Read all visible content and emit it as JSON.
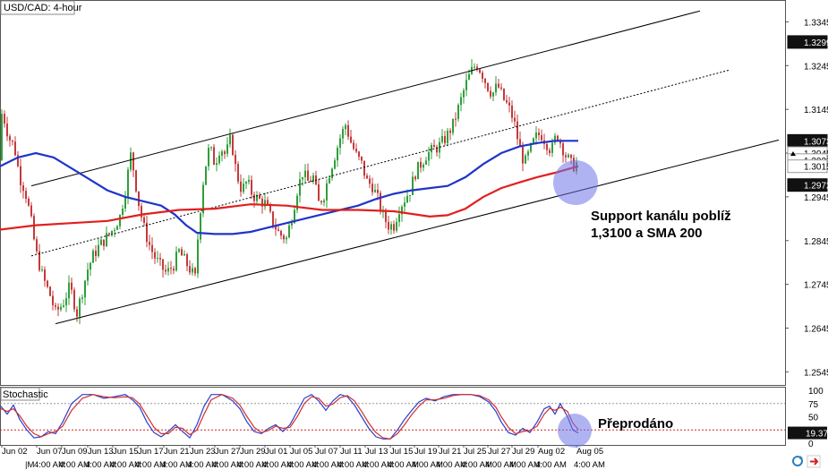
{
  "header": {
    "symbol_label": "USD/CAD: 4-hour"
  },
  "indicator": {
    "label": "Stochastic",
    "current_value": "19.37",
    "levels": [
      "100",
      "75",
      "50",
      "25",
      "0"
    ]
  },
  "annotations": {
    "support_line1": "Support kanálu poblíž",
    "support_line2": "1,3100 a SMA 200",
    "oversold": "Přeprodáno"
  },
  "price_tags": [
    {
      "value": "1.3299",
      "style": "dark"
    },
    {
      "value": "1.3073",
      "style": "dark"
    },
    {
      "value": "1.3045",
      "style": "light"
    },
    {
      "value": "1.3029",
      "style": "light"
    },
    {
      "value": "1.3015",
      "style": "light"
    },
    {
      "value": "1.2972",
      "style": "dark"
    }
  ],
  "colors": {
    "sma_fast": "#1f35c9",
    "sma_slow": "#e0201e",
    "bull": "#2f9e3a",
    "bear": "#c43a3a",
    "stoch_k": "#2a3fcf",
    "stoch_d": "#d23030",
    "highlight": "#6f74e8"
  },
  "chart_data": {
    "type": "candlestick",
    "title": "USD/CAD: 4-hour",
    "y_ticks": [
      1.3345,
      1.3245,
      1.3145,
      1.3045,
      1.2945,
      1.2845,
      1.2745,
      1.2645,
      1.2545
    ],
    "ylim": [
      1.2515,
      1.3395
    ],
    "x_ticks_upper": [
      "Jun 02",
      "Jun 07",
      "Jun 09",
      "Jun 13",
      "Jun 15",
      "Jun 17",
      "Jun 21",
      "Jun 23",
      "Jun 27",
      "Jun 29",
      "Jul 01",
      "Jul 05",
      "Jul 07",
      "Jul 11",
      "Jul 13",
      "Jul 15",
      "Jul 19",
      "Jul 21",
      "Jul 25",
      "Jul 27",
      "Jul 29",
      "Aug 02",
      "Aug 05"
    ],
    "x_ticks_lower": [
      "|M",
      "4:00 AM",
      "4:00 AM",
      "4:00 AM",
      "4:00 AM",
      "4:00 AM",
      "4:00 AM",
      "4:00 AM",
      "4:00 AM",
      "4:00 AM",
      "4:00 AM",
      "4:00 AM",
      "4:00 AM",
      "4:00 AM",
      "4:00 AM",
      "4:00 AM",
      "4:00 AM",
      "4:00 AM",
      "4:00 AM",
      "4:00 AM",
      "4:00 AM",
      "4:00 AM",
      "4:00 AM"
    ],
    "close_path": [
      [
        1,
        1.314
      ],
      [
        5,
        1.312
      ],
      [
        10,
        1.308
      ],
      [
        16,
        1.306
      ],
      [
        22,
        1.299
      ],
      [
        28,
        1.296
      ],
      [
        34,
        1.29
      ],
      [
        40,
        1.282
      ],
      [
        48,
        1.276
      ],
      [
        56,
        1.272
      ],
      [
        62,
        1.268
      ],
      [
        70,
        1.27
      ],
      [
        78,
        1.274
      ],
      [
        86,
        1.268
      ],
      [
        92,
        1.273
      ],
      [
        98,
        1.278
      ],
      [
        104,
        1.281
      ],
      [
        110,
        1.283
      ],
      [
        118,
        1.285
      ],
      [
        126,
        1.287
      ],
      [
        134,
        1.29
      ],
      [
        140,
        1.296
      ],
      [
        146,
        1.304
      ],
      [
        150,
        1.3
      ],
      [
        154,
        1.294
      ],
      [
        160,
        1.288
      ],
      [
        166,
        1.284
      ],
      [
        172,
        1.281
      ],
      [
        178,
        1.279
      ],
      [
        186,
        1.277
      ],
      [
        194,
        1.279
      ],
      [
        200,
        1.282
      ],
      [
        206,
        1.28
      ],
      [
        212,
        1.278
      ],
      [
        218,
        1.276
      ],
      [
        222,
        1.288
      ],
      [
        228,
        1.3
      ],
      [
        234,
        1.306
      ],
      [
        240,
        1.302
      ],
      [
        246,
        1.306
      ],
      [
        252,
        1.304
      ],
      [
        258,
        1.308
      ],
      [
        264,
        1.3
      ],
      [
        270,
        1.296
      ],
      [
        276,
        1.298
      ],
      [
        282,
        1.295
      ],
      [
        288,
        1.294
      ],
      [
        296,
        1.293
      ],
      [
        304,
        1.289
      ],
      [
        312,
        1.286
      ],
      [
        320,
        1.285
      ],
      [
        326,
        1.29
      ],
      [
        332,
        1.296
      ],
      [
        338,
        1.3
      ],
      [
        344,
        1.298
      ],
      [
        350,
        1.299
      ],
      [
        356,
        1.293
      ],
      [
        362,
        1.295
      ],
      [
        368,
        1.3
      ],
      [
        374,
        1.304
      ],
      [
        380,
        1.308
      ],
      [
        386,
        1.311
      ],
      [
        392,
        1.307
      ],
      [
        398,
        1.304
      ],
      [
        404,
        1.302
      ],
      [
        410,
        1.298
      ],
      [
        416,
        1.297
      ],
      [
        422,
        1.294
      ],
      [
        428,
        1.29
      ],
      [
        434,
        1.288
      ],
      [
        440,
        1.288
      ],
      [
        446,
        1.292
      ],
      [
        452,
        1.294
      ],
      [
        458,
        1.296
      ],
      [
        464,
        1.3
      ],
      [
        470,
        1.302
      ],
      [
        476,
        1.304
      ],
      [
        482,
        1.305
      ],
      [
        490,
        1.306
      ],
      [
        498,
        1.308
      ],
      [
        506,
        1.311
      ],
      [
        514,
        1.316
      ],
      [
        520,
        1.32
      ],
      [
        526,
        1.323
      ],
      [
        532,
        1.325
      ],
      [
        538,
        1.323
      ],
      [
        544,
        1.32
      ],
      [
        550,
        1.318
      ],
      [
        556,
        1.32
      ],
      [
        562,
        1.317
      ],
      [
        568,
        1.315
      ],
      [
        574,
        1.312
      ],
      [
        580,
        1.306
      ],
      [
        586,
        1.302
      ],
      [
        592,
        1.305
      ],
      [
        598,
        1.308
      ],
      [
        604,
        1.309
      ],
      [
        610,
        1.307
      ],
      [
        616,
        1.305
      ],
      [
        622,
        1.309
      ],
      [
        626,
        1.307
      ],
      [
        632,
        1.304
      ],
      [
        638,
        1.302
      ],
      [
        642,
        1.3015
      ],
      [
        646,
        1.3029
      ]
    ],
    "overlays": [
      {
        "name": "SMA 100",
        "color": "#1f35c9",
        "points": [
          [
            0,
            1.3015
          ],
          [
            20,
            1.3035
          ],
          [
            40,
            1.3045
          ],
          [
            60,
            1.3035
          ],
          [
            80,
            1.301
          ],
          [
            100,
            1.2985
          ],
          [
            120,
            1.296
          ],
          [
            140,
            1.2945
          ],
          [
            160,
            1.2935
          ],
          [
            180,
            1.2925
          ],
          [
            195,
            1.2905
          ],
          [
            208,
            1.288
          ],
          [
            220,
            1.2863
          ],
          [
            240,
            1.286
          ],
          [
            260,
            1.286
          ],
          [
            280,
            1.2865
          ],
          [
            300,
            1.2875
          ],
          [
            320,
            1.2885
          ],
          [
            340,
            1.2895
          ],
          [
            360,
            1.2905
          ],
          [
            380,
            1.2915
          ],
          [
            400,
            1.2925
          ],
          [
            420,
            1.294
          ],
          [
            440,
            1.2952
          ],
          [
            460,
            1.296
          ],
          [
            480,
            1.2965
          ],
          [
            500,
            1.297
          ],
          [
            520,
            1.299
          ],
          [
            540,
            1.302
          ],
          [
            560,
            1.3045
          ],
          [
            580,
            1.306
          ],
          [
            600,
            1.3068
          ],
          [
            620,
            1.3073
          ],
          [
            646,
            1.3073
          ]
        ]
      },
      {
        "name": "SMA 200",
        "color": "#e0201e",
        "points": [
          [
            0,
            1.287
          ],
          [
            40,
            1.288
          ],
          [
            80,
            1.2885
          ],
          [
            120,
            1.289
          ],
          [
            160,
            1.2905
          ],
          [
            200,
            1.2915
          ],
          [
            240,
            1.2918
          ],
          [
            280,
            1.2928
          ],
          [
            320,
            1.2925
          ],
          [
            360,
            1.2915
          ],
          [
            400,
            1.2915
          ],
          [
            440,
            1.2912
          ],
          [
            480,
            1.29
          ],
          [
            500,
            1.2903
          ],
          [
            520,
            1.2918
          ],
          [
            540,
            1.2945
          ],
          [
            560,
            1.2965
          ],
          [
            580,
            1.2978
          ],
          [
            600,
            1.299
          ],
          [
            620,
            1.3
          ],
          [
            646,
            1.3015
          ]
        ]
      }
    ],
    "trendlines": [
      {
        "name": "channel-upper",
        "style": "solid",
        "points": [
          [
            35,
            1.297
          ],
          [
            782,
            1.337
          ]
        ]
      },
      {
        "name": "channel-mid",
        "style": "dashed",
        "points": [
          [
            35,
            1.281
          ],
          [
            815,
            1.3235
          ]
        ]
      },
      {
        "name": "channel-lower",
        "style": "solid",
        "points": [
          [
            62,
            1.2655
          ],
          [
            870,
            1.3075
          ]
        ]
      }
    ],
    "stochastic": {
      "ylim": [
        0,
        100
      ],
      "k_path": [
        [
          1,
          70
        ],
        [
          8,
          55
        ],
        [
          15,
          72
        ],
        [
          22,
          45
        ],
        [
          30,
          25
        ],
        [
          38,
          10
        ],
        [
          46,
          12
        ],
        [
          54,
          22
        ],
        [
          62,
          18
        ],
        [
          70,
          40
        ],
        [
          80,
          75
        ],
        [
          92,
          92
        ],
        [
          104,
          92
        ],
        [
          116,
          85
        ],
        [
          128,
          88
        ],
        [
          140,
          92
        ],
        [
          148,
          82
        ],
        [
          156,
          68
        ],
        [
          164,
          40
        ],
        [
          172,
          20
        ],
        [
          180,
          12
        ],
        [
          188,
          22
        ],
        [
          196,
          35
        ],
        [
          204,
          22
        ],
        [
          212,
          10
        ],
        [
          220,
          35
        ],
        [
          228,
          70
        ],
        [
          236,
          92
        ],
        [
          248,
          92
        ],
        [
          260,
          80
        ],
        [
          268,
          65
        ],
        [
          276,
          40
        ],
        [
          284,
          22
        ],
        [
          292,
          18
        ],
        [
          300,
          28
        ],
        [
          308,
          35
        ],
        [
          316,
          22
        ],
        [
          324,
          35
        ],
        [
          332,
          60
        ],
        [
          340,
          85
        ],
        [
          348,
          92
        ],
        [
          356,
          80
        ],
        [
          364,
          62
        ],
        [
          372,
          80
        ],
        [
          380,
          92
        ],
        [
          388,
          88
        ],
        [
          396,
          72
        ],
        [
          404,
          50
        ],
        [
          412,
          28
        ],
        [
          420,
          12
        ],
        [
          428,
          8
        ],
        [
          436,
          8
        ],
        [
          444,
          25
        ],
        [
          452,
          45
        ],
        [
          460,
          62
        ],
        [
          468,
          78
        ],
        [
          476,
          85
        ],
        [
          486,
          80
        ],
        [
          496,
          88
        ],
        [
          506,
          92
        ],
        [
          516,
          92
        ],
        [
          526,
          92
        ],
        [
          536,
          88
        ],
        [
          546,
          78
        ],
        [
          554,
          60
        ],
        [
          560,
          40
        ],
        [
          568,
          20
        ],
        [
          576,
          15
        ],
        [
          584,
          28
        ],
        [
          592,
          20
        ],
        [
          600,
          40
        ],
        [
          608,
          65
        ],
        [
          614,
          70
        ],
        [
          620,
          55
        ],
        [
          626,
          75
        ],
        [
          634,
          50
        ],
        [
          640,
          25
        ],
        [
          646,
          19.37
        ]
      ],
      "d_path": [
        [
          1,
          65
        ],
        [
          8,
          60
        ],
        [
          15,
          65
        ],
        [
          22,
          52
        ],
        [
          30,
          32
        ],
        [
          38,
          18
        ],
        [
          46,
          12
        ],
        [
          54,
          18
        ],
        [
          62,
          22
        ],
        [
          70,
          32
        ],
        [
          80,
          62
        ],
        [
          92,
          85
        ],
        [
          104,
          92
        ],
        [
          116,
          88
        ],
        [
          128,
          86
        ],
        [
          140,
          88
        ],
        [
          148,
          86
        ],
        [
          156,
          74
        ],
        [
          164,
          52
        ],
        [
          172,
          30
        ],
        [
          180,
          18
        ],
        [
          188,
          18
        ],
        [
          196,
          30
        ],
        [
          204,
          28
        ],
        [
          212,
          16
        ],
        [
          220,
          25
        ],
        [
          228,
          55
        ],
        [
          236,
          82
        ],
        [
          248,
          92
        ],
        [
          260,
          85
        ],
        [
          268,
          72
        ],
        [
          276,
          50
        ],
        [
          284,
          30
        ],
        [
          292,
          20
        ],
        [
          300,
          24
        ],
        [
          308,
          32
        ],
        [
          316,
          28
        ],
        [
          324,
          30
        ],
        [
          332,
          50
        ],
        [
          340,
          75
        ],
        [
          348,
          88
        ],
        [
          356,
          85
        ],
        [
          364,
          70
        ],
        [
          372,
          74
        ],
        [
          380,
          86
        ],
        [
          388,
          90
        ],
        [
          396,
          80
        ],
        [
          404,
          60
        ],
        [
          412,
          38
        ],
        [
          420,
          20
        ],
        [
          428,
          10
        ],
        [
          436,
          8
        ],
        [
          444,
          18
        ],
        [
          452,
          35
        ],
        [
          460,
          54
        ],
        [
          468,
          70
        ],
        [
          476,
          82
        ],
        [
          486,
          82
        ],
        [
          496,
          85
        ],
        [
          506,
          90
        ],
        [
          516,
          92
        ],
        [
          526,
          92
        ],
        [
          536,
          90
        ],
        [
          546,
          82
        ],
        [
          554,
          68
        ],
        [
          560,
          50
        ],
        [
          568,
          30
        ],
        [
          576,
          18
        ],
        [
          584,
          22
        ],
        [
          592,
          24
        ],
        [
          600,
          32
        ],
        [
          608,
          55
        ],
        [
          614,
          66
        ],
        [
          620,
          62
        ],
        [
          626,
          68
        ],
        [
          634,
          60
        ],
        [
          640,
          38
        ],
        [
          646,
          26
        ]
      ]
    }
  }
}
